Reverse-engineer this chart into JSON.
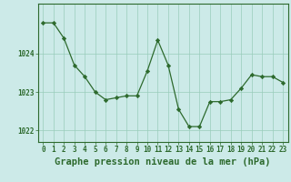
{
  "x": [
    0,
    1,
    2,
    3,
    4,
    5,
    6,
    7,
    8,
    9,
    10,
    11,
    12,
    13,
    14,
    15,
    16,
    17,
    18,
    19,
    20,
    21,
    22,
    23
  ],
  "y": [
    1024.8,
    1024.8,
    1024.4,
    1023.7,
    1023.4,
    1023.0,
    1022.8,
    1022.85,
    1022.9,
    1022.9,
    1023.55,
    1024.35,
    1023.7,
    1022.55,
    1022.1,
    1022.1,
    1022.75,
    1022.75,
    1022.8,
    1023.1,
    1023.45,
    1023.4,
    1023.4,
    1023.25
  ],
  "line_color": "#2d6a2d",
  "marker": "D",
  "marker_size": 2.2,
  "bg_color": "#cceae8",
  "grid_color": "#99ccbb",
  "tick_label_color": "#2d6a2d",
  "xlabel": "Graphe pression niveau de la mer (hPa)",
  "xlabel_color": "#2d6a2d",
  "xlabel_fontsize": 7.5,
  "xlim": [
    -0.5,
    23.5
  ],
  "ylim": [
    1021.7,
    1025.3
  ],
  "yticks": [
    1022,
    1023,
    1024
  ],
  "xticks": [
    0,
    1,
    2,
    3,
    4,
    5,
    6,
    7,
    8,
    9,
    10,
    11,
    12,
    13,
    14,
    15,
    16,
    17,
    18,
    19,
    20,
    21,
    22,
    23
  ],
  "tick_fontsize": 5.5,
  "spine_color": "#2d6a2d",
  "linewidth": 0.9
}
